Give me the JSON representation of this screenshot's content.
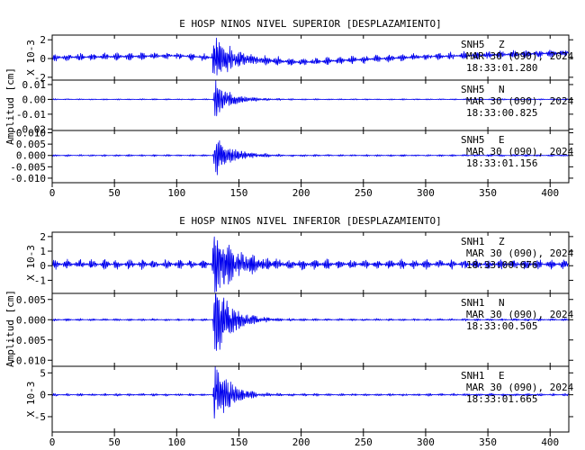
{
  "colors": {
    "trace": "#0000ee",
    "axis": "#000000",
    "background": "#ffffff"
  },
  "chart_data": [
    {
      "type": "line",
      "title": "E HOSP NINOS NIVEL SUPERIOR [DESPLAZAMIENTO]",
      "ylabel": "Amplitud [cm]",
      "xlim": [
        0,
        415
      ],
      "xticks": [
        0,
        50,
        100,
        150,
        200,
        250,
        300,
        350,
        400
      ],
      "panels": [
        {
          "station": "SNH5",
          "component": "Z",
          "date": "MAR 30 (090), 2024",
          "time": "18:33:01.280",
          "scale_label": "X 10-3",
          "ylim": [
            -2.3,
            2.5
          ],
          "yticks": [
            -2,
            0,
            2
          ],
          "ytick_labels": [
            "-2",
            "0",
            "2"
          ],
          "envelope": {
            "noise": 0.55,
            "peak": 2.4,
            "event_start": 128,
            "decay": 14,
            "baseline": [
              [
                0,
                0.1
              ],
              [
                100,
                0.3
              ],
              [
                200,
                -0.4
              ],
              [
                300,
                0.2
              ],
              [
                415,
                0.6
              ]
            ]
          }
        },
        {
          "station": "SNH5",
          "component": "N",
          "date": "MAR 30 (090), 2024",
          "time": "18:33:00.825",
          "scale_label": "",
          "ylim": [
            -0.021,
            0.013
          ],
          "yticks": [
            -0.02,
            -0.01,
            0.0,
            0.01
          ],
          "ytick_labels": [
            "-0.02",
            "-0.01",
            "0.00",
            "0.01"
          ],
          "envelope": {
            "noise": 0.0006,
            "peak": 0.013,
            "event_start": 129,
            "decay": 12,
            "baseline": [
              [
                0,
                0
              ],
              [
                415,
                0
              ]
            ]
          }
        },
        {
          "station": "SNH5",
          "component": "E",
          "date": "MAR 30 (090), 2024",
          "time": "18:33:01.156",
          "scale_label": "",
          "ylim": [
            -0.012,
            0.011
          ],
          "yticks": [
            -0.01,
            -0.005,
            0.0,
            0.005,
            0.01
          ],
          "ytick_labels": [
            "-0.010",
            "-0.005",
            "0.000",
            "0.005",
            "0.010"
          ],
          "envelope": {
            "noise": 0.0006,
            "peak": 0.009,
            "event_start": 129,
            "decay": 13,
            "baseline": [
              [
                0,
                0
              ],
              [
                415,
                0
              ]
            ]
          }
        }
      ]
    },
    {
      "type": "line",
      "title": "E HOSP NINOS NIVEL INFERIOR [DESPLAZAMIENTO]",
      "ylabel": "Amplitud [cm]",
      "xlim": [
        0,
        415
      ],
      "xticks": [
        0,
        50,
        100,
        150,
        200,
        250,
        300,
        350,
        400
      ],
      "panels": [
        {
          "station": "SNH1",
          "component": "Z",
          "date": "MAR 30 (090), 2024",
          "time": "18:33:00.676",
          "scale_label": "X 10-3",
          "ylim": [
            -1.9,
            2.3
          ],
          "yticks": [
            -1,
            0,
            1,
            2
          ],
          "ytick_labels": [
            "-1",
            "0",
            "1",
            "2"
          ],
          "envelope": {
            "noise": 0.45,
            "peak": 2.2,
            "event_start": 128,
            "decay": 16,
            "baseline": [
              [
                0,
                0.1
              ],
              [
                415,
                0.1
              ]
            ]
          }
        },
        {
          "station": "SNH1",
          "component": "N",
          "date": "MAR 30 (090), 2024",
          "time": "18:33:00.505",
          "scale_label": "",
          "ylim": [
            -0.0115,
            0.0065
          ],
          "yticks": [
            -0.01,
            -0.005,
            0.0,
            0.005
          ],
          "ytick_labels": [
            "-0.010",
            "-0.005",
            "0.000",
            "0.005"
          ],
          "envelope": {
            "noise": 0.0004,
            "peak": 0.01,
            "event_start": 129,
            "decay": 12,
            "baseline": [
              [
                0,
                0
              ],
              [
                415,
                0
              ]
            ]
          }
        },
        {
          "station": "SNH1",
          "component": "E",
          "date": "MAR 30 (090), 2024",
          "time": "18:33:01.665",
          "scale_label": "X 10-3",
          "ylim": [
            -8.5,
            6.5
          ],
          "yticks": [
            -5,
            0,
            5
          ],
          "ytick_labels": [
            "-5",
            "0",
            "5"
          ],
          "envelope": {
            "noise": 0.4,
            "peak": 8.0,
            "event_start": 129,
            "decay": 11,
            "baseline": [
              [
                0,
                0
              ],
              [
                415,
                0
              ]
            ]
          }
        }
      ]
    }
  ]
}
